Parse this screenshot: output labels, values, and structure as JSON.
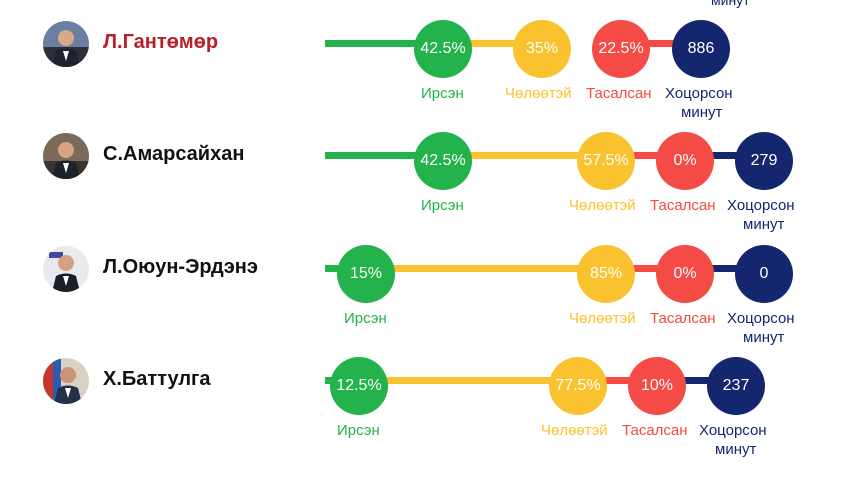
{
  "header_fragment": "минут",
  "labels": {
    "present": "Ирсэн",
    "free": "Чөлөөтэй",
    "absent": "Тасалсан",
    "late": "Хоцорсон",
    "late_unit": "минут"
  },
  "colors": {
    "present": "#24b24c",
    "free": "#f9c22e",
    "absent": "#f44b46",
    "late": "#14276e",
    "highlight_name": "#b81f2a"
  },
  "members": [
    {
      "name": "Л.Гантөмөр",
      "present": "42.5%",
      "free": "35%",
      "absent": "22.5%",
      "late_minutes": "886",
      "present_value": 42.5,
      "free_value": 35,
      "absent_value": 22.5
    },
    {
      "name": "С.Амарсайхан",
      "present": "42.5%",
      "free": "57.5%",
      "absent": "0%",
      "late_minutes": "279",
      "present_value": 42.5,
      "free_value": 57.5,
      "absent_value": 0
    },
    {
      "name": "Л.Оюун-Эрдэнэ",
      "present": "15%",
      "free": "85%",
      "absent": "0%",
      "late_minutes": "0",
      "present_value": 15,
      "free_value": 85,
      "absent_value": 0
    },
    {
      "name": "Х.Баттулга",
      "present": "12.5%",
      "free": "77.5%",
      "absent": "10%",
      "late_minutes": "237",
      "present_value": 12.5,
      "free_value": 77.5,
      "absent_value": 10
    }
  ]
}
